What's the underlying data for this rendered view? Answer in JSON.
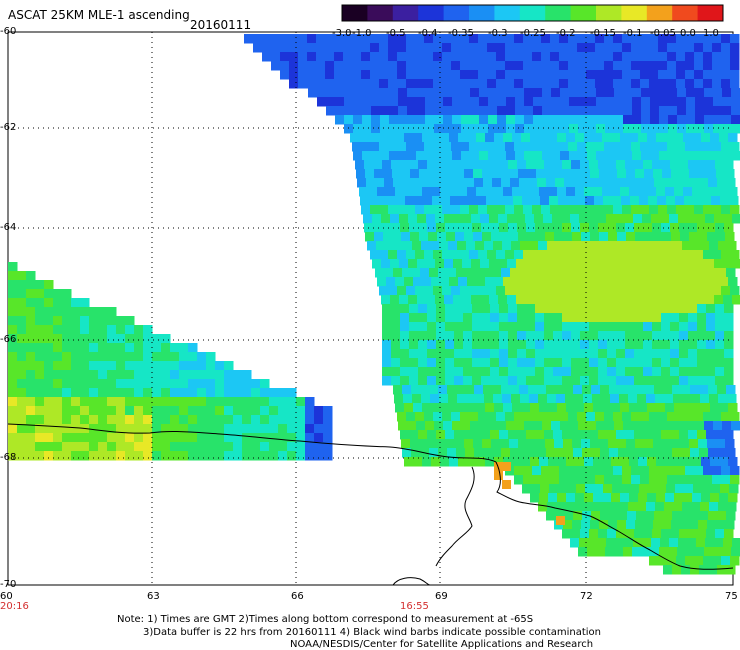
{
  "header": {
    "title": "ASCAT 25KM MLE-1 ascending",
    "date": "20160111"
  },
  "colorbar": {
    "labels": [
      "-3.0",
      "-1.0",
      "-0.5",
      "-0.4",
      "-0.35",
      "-0.3",
      "-0.25",
      "-0.2",
      "-0.15",
      "-0.1",
      "-0.05",
      "0.0",
      "1.0"
    ],
    "colors": [
      "#1a0023",
      "#3a0c5a",
      "#3b1fa0",
      "#1c34d9",
      "#1f63ef",
      "#1a8ff4",
      "#1cc7f4",
      "#16e6c6",
      "#28e36a",
      "#58e629",
      "#aee826",
      "#e8e826",
      "#f3a11c",
      "#f04a1e",
      "#e0161a"
    ]
  },
  "axes": {
    "y_ticks": [
      "-60",
      "-62",
      "-64",
      "-66",
      "-68",
      "-70"
    ],
    "x_ticks": [
      "60",
      "63",
      "66",
      "69",
      "72",
      "75"
    ],
    "x_times": [
      "20:16",
      "16:55"
    ]
  },
  "notes": {
    "line1": "Note: 1) Times are GMT 2)Times along bottom correspond to measurement at -65S",
    "line2": "3)Data buffer is 22 hrs from 20160111 4) Black wind barbs indicate possible contamination",
    "line3": "NOAA/NESDIS/Center for Satellite Applications and Research"
  }
}
